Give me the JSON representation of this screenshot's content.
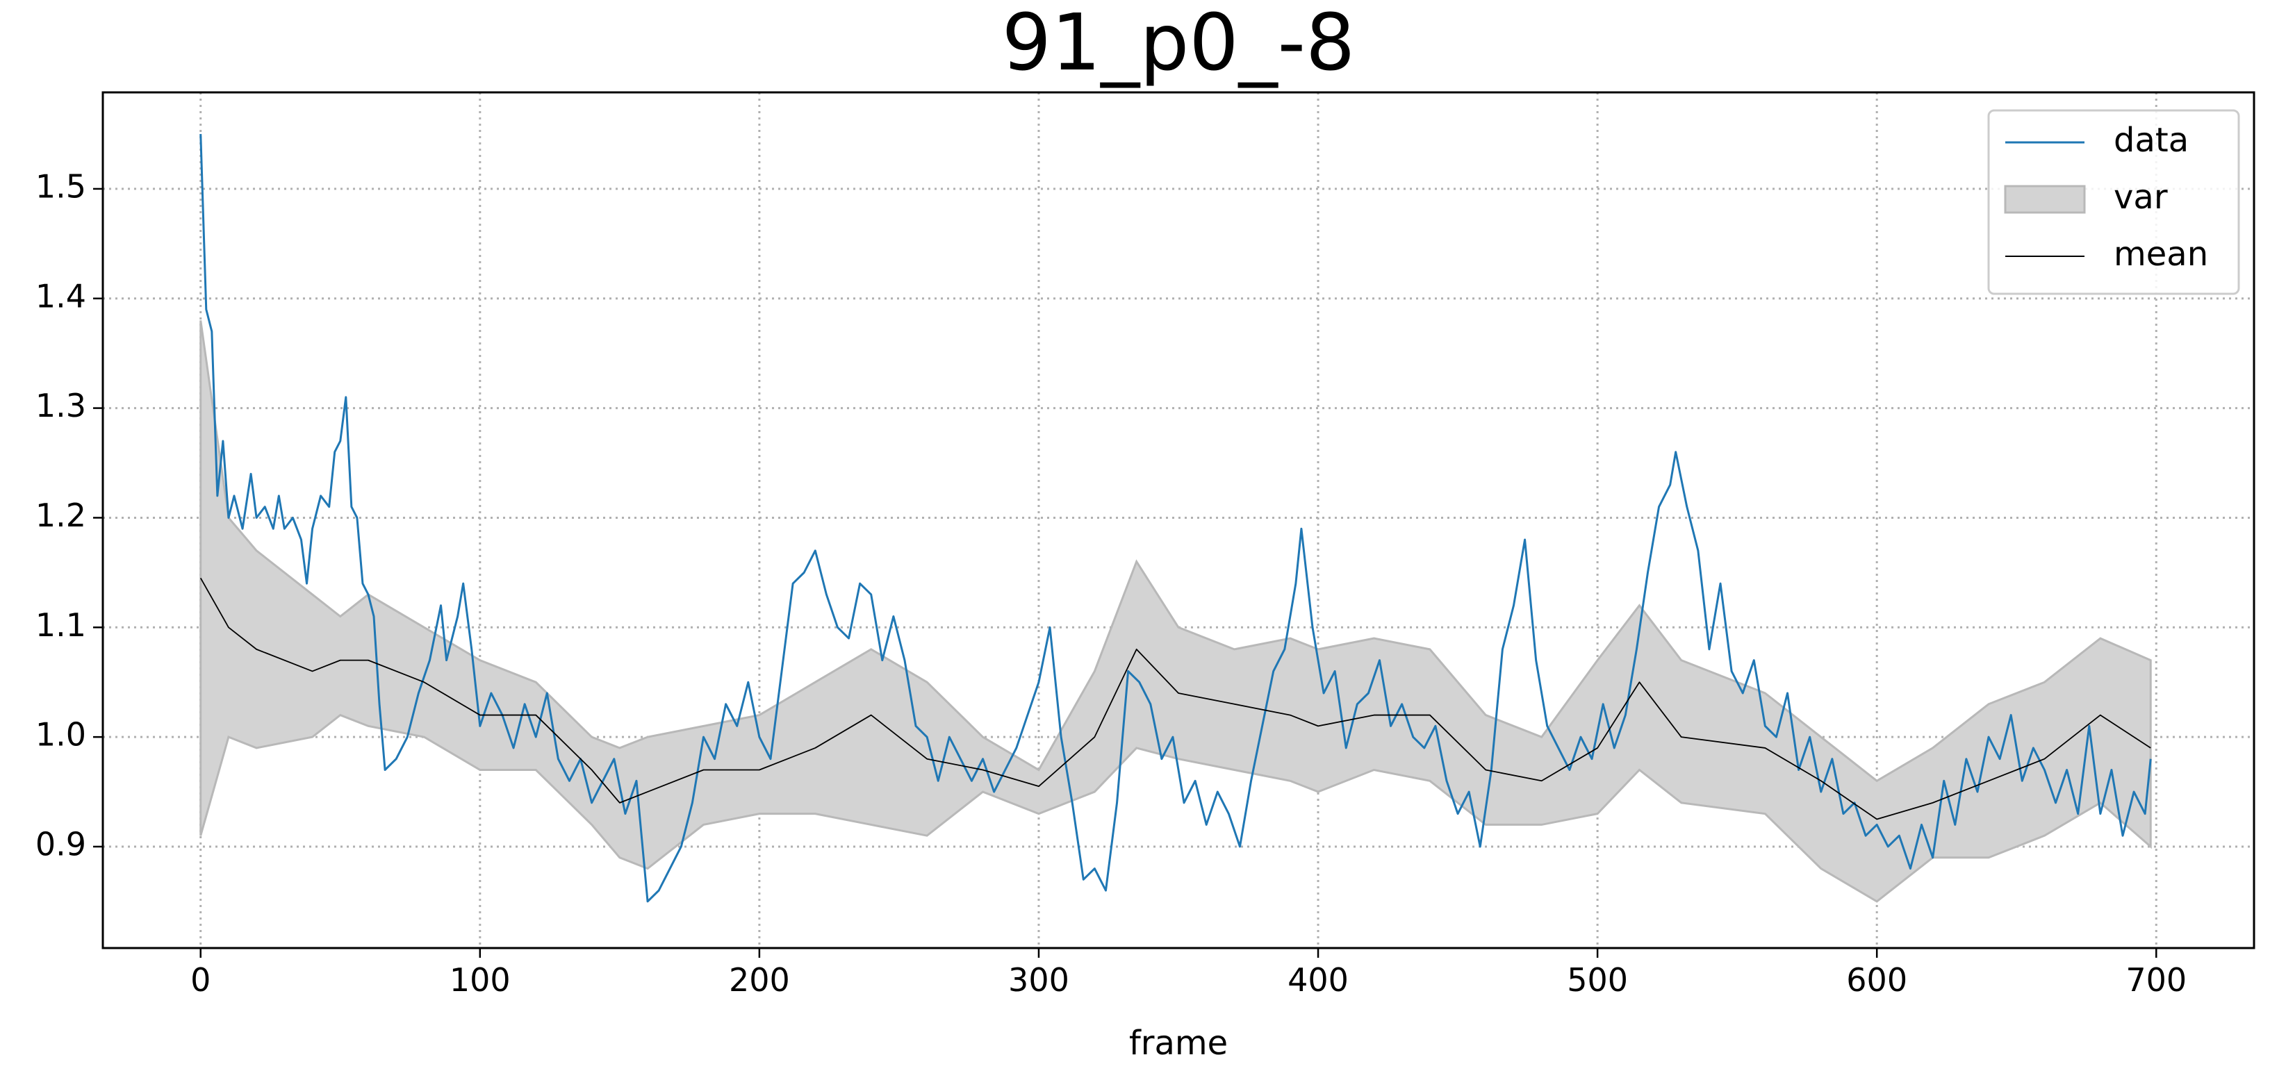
{
  "chart_data": {
    "type": "line",
    "title": "91_p0_-8",
    "x_label": "frame",
    "xlim": [
      -35,
      735
    ],
    "ylim": [
      0.8075,
      1.588
    ],
    "xticks": [
      0,
      100,
      200,
      300,
      400,
      500,
      600,
      700
    ],
    "yticks": [
      0.9,
      {
        "value": 1.0,
        "label": "1.0"
      },
      1.1,
      1.2,
      1.3,
      1.4,
      1.5
    ],
    "grid": true,
    "legend": "upper right",
    "series": [
      {
        "name": "data",
        "kind": "line",
        "color": "#1f77b4",
        "x": [
          0,
          2,
          4,
          6,
          8,
          10,
          12,
          15,
          18,
          20,
          23,
          26,
          28,
          30,
          33,
          36,
          38,
          40,
          43,
          46,
          48,
          50,
          52,
          54,
          56,
          58,
          60,
          62,
          64,
          66,
          70,
          74,
          78,
          82,
          86,
          88,
          92,
          94,
          97,
          100,
          104,
          108,
          112,
          116,
          120,
          124,
          128,
          132,
          136,
          140,
          144,
          148,
          152,
          156,
          160,
          164,
          168,
          172,
          176,
          180,
          184,
          188,
          192,
          196,
          200,
          204,
          208,
          212,
          216,
          220,
          224,
          228,
          232,
          236,
          240,
          244,
          248,
          252,
          256,
          260,
          264,
          268,
          272,
          276,
          280,
          284,
          288,
          292,
          296,
          300,
          304,
          308,
          312,
          316,
          320,
          324,
          328,
          332,
          336,
          340,
          344,
          348,
          352,
          356,
          360,
          364,
          368,
          372,
          376,
          380,
          384,
          388,
          392,
          394,
          398,
          402,
          406,
          410,
          414,
          418,
          422,
          426,
          430,
          434,
          438,
          442,
          446,
          450,
          454,
          458,
          462,
          466,
          470,
          474,
          478,
          482,
          486,
          490,
          494,
          498,
          502,
          506,
          510,
          514,
          518,
          522,
          526,
          528,
          532,
          536,
          540,
          544,
          548,
          552,
          556,
          560,
          564,
          568,
          572,
          576,
          580,
          584,
          588,
          592,
          596,
          600,
          604,
          608,
          612,
          616,
          620,
          624,
          628,
          632,
          636,
          640,
          644,
          648,
          652,
          656,
          660,
          664,
          668,
          672,
          676,
          680,
          684,
          688,
          692,
          696,
          698
        ],
        "values": [
          1.55,
          1.39,
          1.37,
          1.22,
          1.27,
          1.2,
          1.22,
          1.19,
          1.24,
          1.2,
          1.21,
          1.19,
          1.22,
          1.19,
          1.2,
          1.18,
          1.14,
          1.19,
          1.22,
          1.21,
          1.26,
          1.27,
          1.31,
          1.21,
          1.2,
          1.14,
          1.13,
          1.11,
          1.03,
          0.97,
          0.98,
          1.0,
          1.04,
          1.07,
          1.12,
          1.07,
          1.11,
          1.14,
          1.08,
          1.01,
          1.04,
          1.02,
          0.99,
          1.03,
          1.0,
          1.04,
          0.98,
          0.96,
          0.98,
          0.94,
          0.96,
          0.98,
          0.93,
          0.96,
          0.85,
          0.86,
          0.88,
          0.9,
          0.94,
          1.0,
          0.98,
          1.03,
          1.01,
          1.05,
          1.0,
          0.98,
          1.06,
          1.14,
          1.15,
          1.17,
          1.13,
          1.1,
          1.09,
          1.14,
          1.13,
          1.07,
          1.11,
          1.07,
          1.01,
          1.0,
          0.96,
          1.0,
          0.98,
          0.96,
          0.98,
          0.95,
          0.97,
          0.99,
          1.02,
          1.05,
          1.1,
          1.0,
          0.94,
          0.87,
          0.88,
          0.86,
          0.94,
          1.06,
          1.05,
          1.03,
          0.98,
          1.0,
          0.94,
          0.96,
          0.92,
          0.95,
          0.93,
          0.9,
          0.96,
          1.01,
          1.06,
          1.08,
          1.14,
          1.19,
          1.1,
          1.04,
          1.06,
          0.99,
          1.03,
          1.04,
          1.07,
          1.01,
          1.03,
          1.0,
          0.99,
          1.01,
          0.96,
          0.93,
          0.95,
          0.9,
          0.97,
          1.08,
          1.12,
          1.18,
          1.07,
          1.01,
          0.99,
          0.97,
          1.0,
          0.98,
          1.03,
          0.99,
          1.02,
          1.08,
          1.15,
          1.21,
          1.23,
          1.26,
          1.21,
          1.17,
          1.08,
          1.14,
          1.06,
          1.04,
          1.07,
          1.01,
          1.0,
          1.04,
          0.97,
          1.0,
          0.95,
          0.98,
          0.93,
          0.94,
          0.91,
          0.92,
          0.9,
          0.91,
          0.88,
          0.92,
          0.89,
          0.96,
          0.92,
          0.98,
          0.95,
          1.0,
          0.98,
          1.02,
          0.96,
          0.99,
          0.97,
          0.94,
          0.97,
          0.93,
          1.01,
          0.93,
          0.97,
          0.91,
          0.95,
          0.93,
          0.98
        ]
      },
      {
        "name": "var",
        "kind": "band",
        "color": "#d3d3d3",
        "x": [
          0,
          10,
          20,
          40,
          50,
          60,
          80,
          100,
          120,
          140,
          150,
          160,
          180,
          200,
          220,
          240,
          260,
          280,
          300,
          320,
          335,
          350,
          370,
          390,
          400,
          420,
          440,
          460,
          480,
          500,
          515,
          530,
          560,
          580,
          600,
          620,
          640,
          660,
          680,
          698
        ],
        "upper": [
          1.38,
          1.2,
          1.17,
          1.13,
          1.11,
          1.13,
          1.1,
          1.07,
          1.05,
          1.0,
          0.99,
          1.0,
          1.01,
          1.02,
          1.05,
          1.08,
          1.05,
          1.0,
          0.97,
          1.06,
          1.16,
          1.1,
          1.08,
          1.09,
          1.08,
          1.09,
          1.08,
          1.02,
          1.0,
          1.07,
          1.12,
          1.07,
          1.04,
          1.0,
          0.96,
          0.99,
          1.03,
          1.05,
          1.09,
          1.07
        ],
        "lower": [
          0.91,
          1.0,
          0.99,
          1.0,
          1.02,
          1.01,
          1.0,
          0.97,
          0.97,
          0.92,
          0.89,
          0.88,
          0.92,
          0.93,
          0.93,
          0.92,
          0.91,
          0.95,
          0.93,
          0.95,
          0.99,
          0.98,
          0.97,
          0.96,
          0.95,
          0.97,
          0.96,
          0.92,
          0.92,
          0.93,
          0.97,
          0.94,
          0.93,
          0.88,
          0.85,
          0.89,
          0.89,
          0.91,
          0.94,
          0.9
        ]
      },
      {
        "name": "mean",
        "kind": "line",
        "color": "#000000",
        "x": [
          0,
          10,
          20,
          40,
          50,
          60,
          80,
          100,
          120,
          140,
          150,
          160,
          180,
          200,
          220,
          240,
          260,
          280,
          300,
          320,
          335,
          350,
          370,
          390,
          400,
          420,
          440,
          460,
          480,
          500,
          515,
          530,
          560,
          580,
          600,
          620,
          640,
          660,
          680,
          698
        ],
        "values": [
          1.145,
          1.1,
          1.08,
          1.06,
          1.07,
          1.07,
          1.05,
          1.02,
          1.02,
          0.97,
          0.94,
          0.95,
          0.97,
          0.97,
          0.99,
          1.02,
          0.98,
          0.97,
          0.955,
          1.0,
          1.08,
          1.04,
          1.03,
          1.02,
          1.01,
          1.02,
          1.02,
          0.97,
          0.96,
          0.99,
          1.05,
          1.0,
          0.99,
          0.96,
          0.925,
          0.94,
          0.96,
          0.98,
          1.02,
          0.99
        ]
      }
    ]
  }
}
